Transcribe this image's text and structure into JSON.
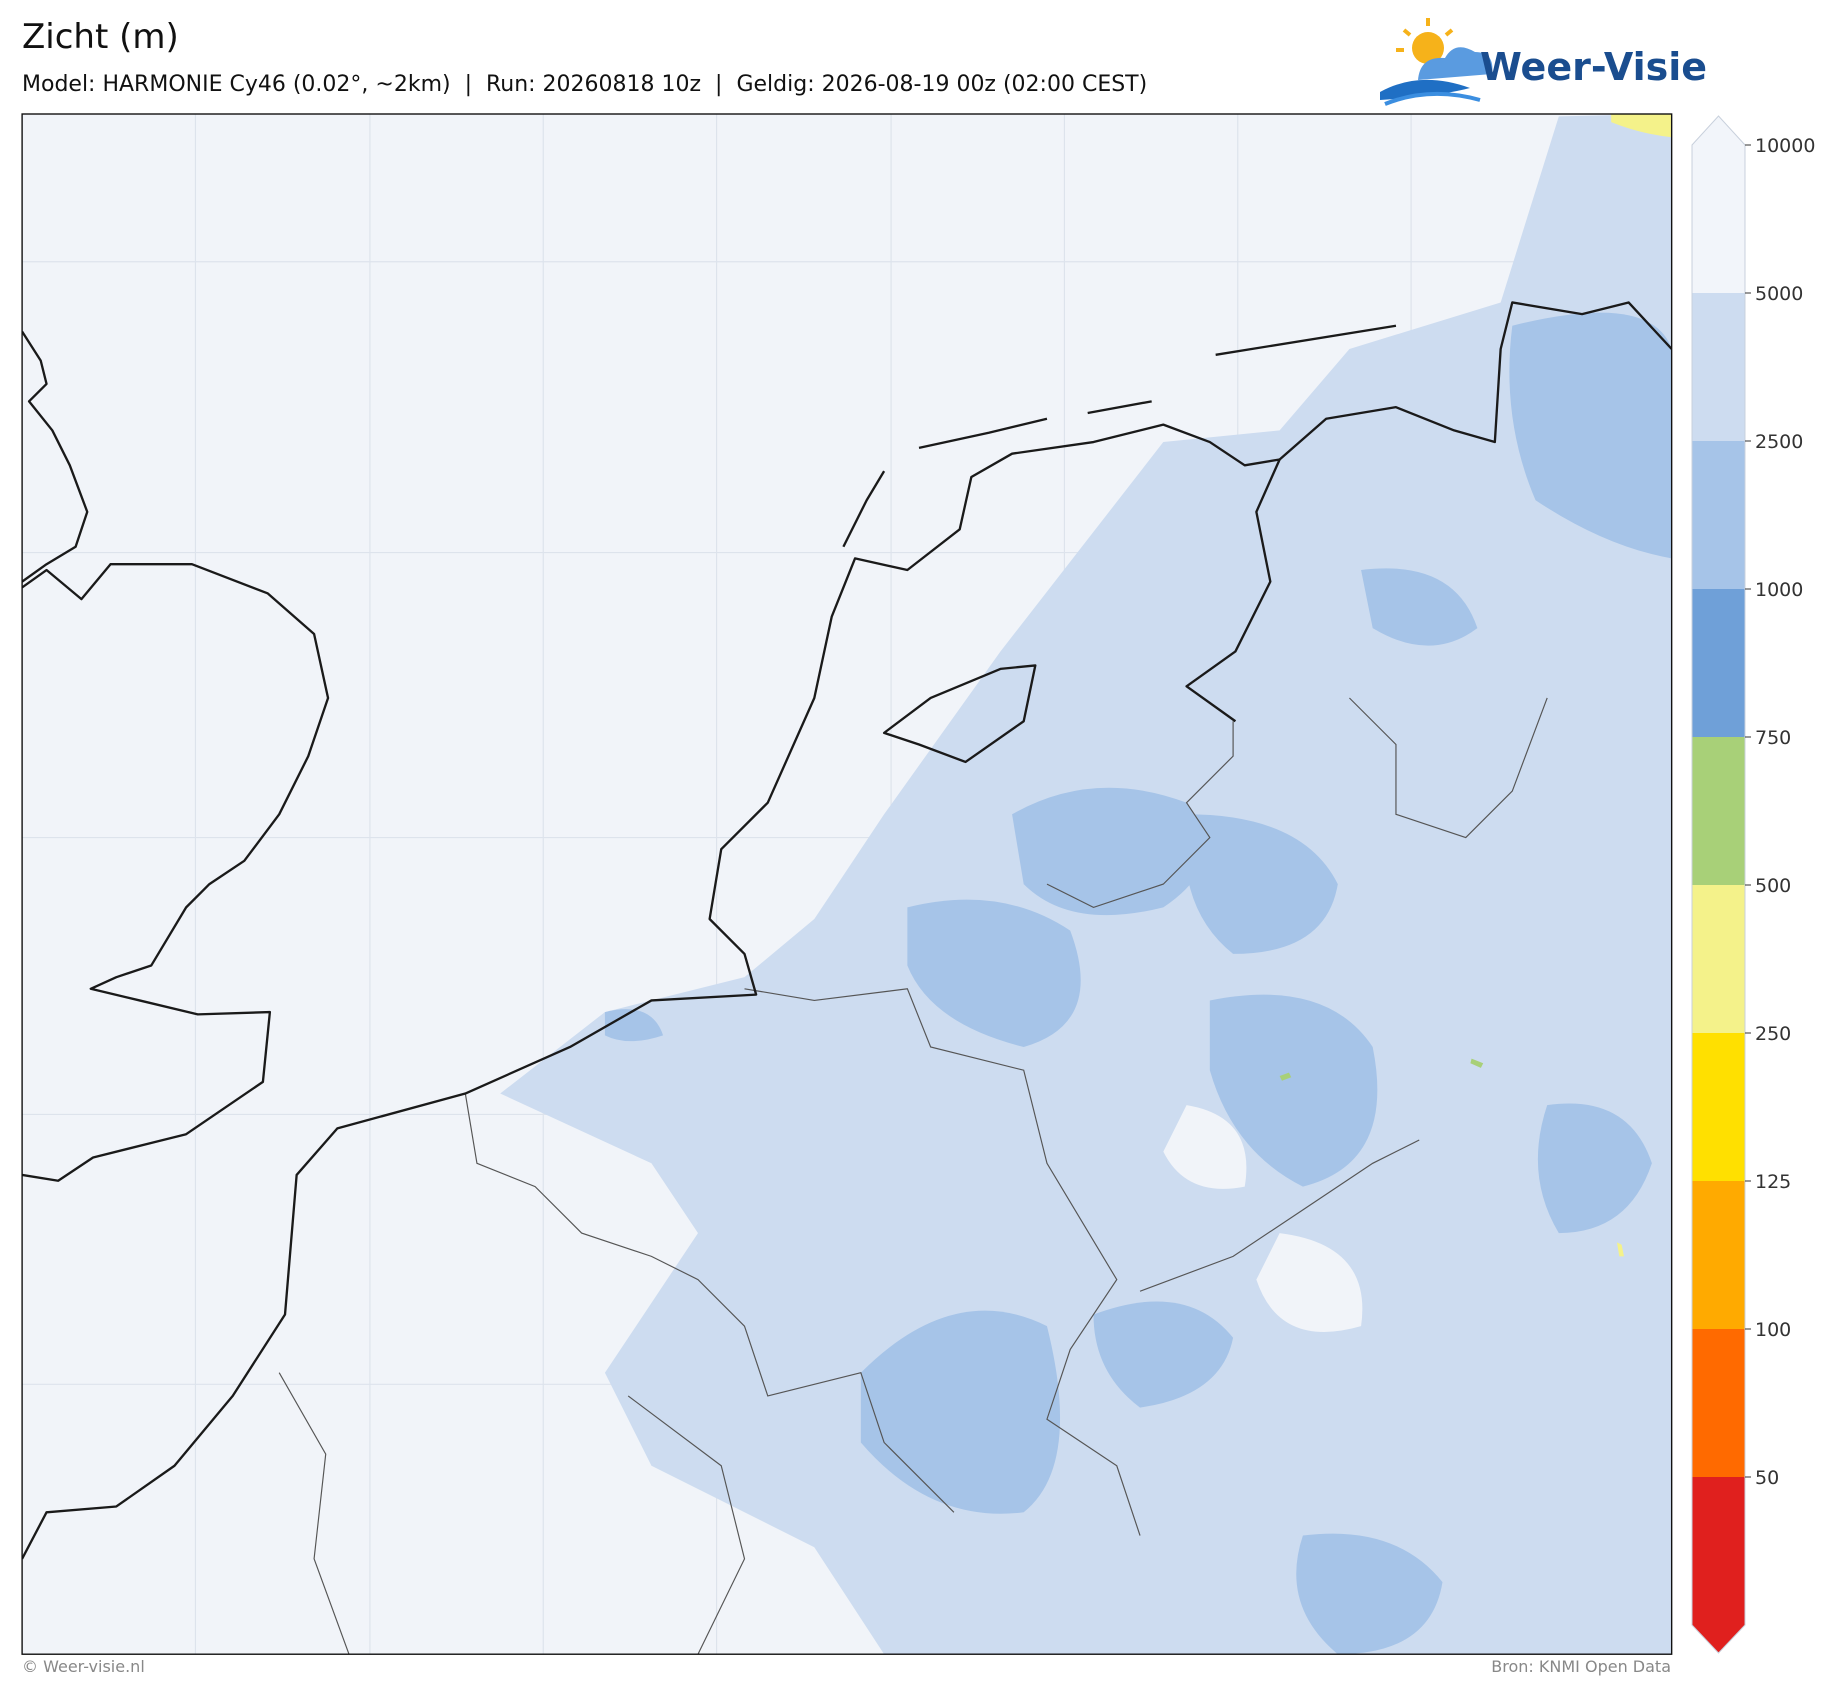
{
  "header": {
    "title": "Zicht (m)",
    "subtitle": "Model: HARMONIE Cy46 (0.02°, ~2km)  |  Run: 20260818 10z  |  Geldig: 2026-08-19 00z (02:00 CEST)",
    "logo": "Weer-Visie"
  },
  "colorbar": {
    "ticks": [
      50,
      100,
      125,
      250,
      500,
      750,
      1000,
      2500,
      5000,
      10000
    ],
    "colors": [
      "#e0201e",
      "#ff6a00",
      "#ffaa00",
      "#ffe000",
      "#f4f28a",
      "#a8d078",
      "#6fa0d8",
      "#a6c4e8",
      "#cddcf0",
      "#f2f5fa",
      "#f2f5fa"
    ]
  },
  "footer": {
    "copyright": "© Weer-visie.nl",
    "source": "Bron: KNMI Open Data"
  }
}
